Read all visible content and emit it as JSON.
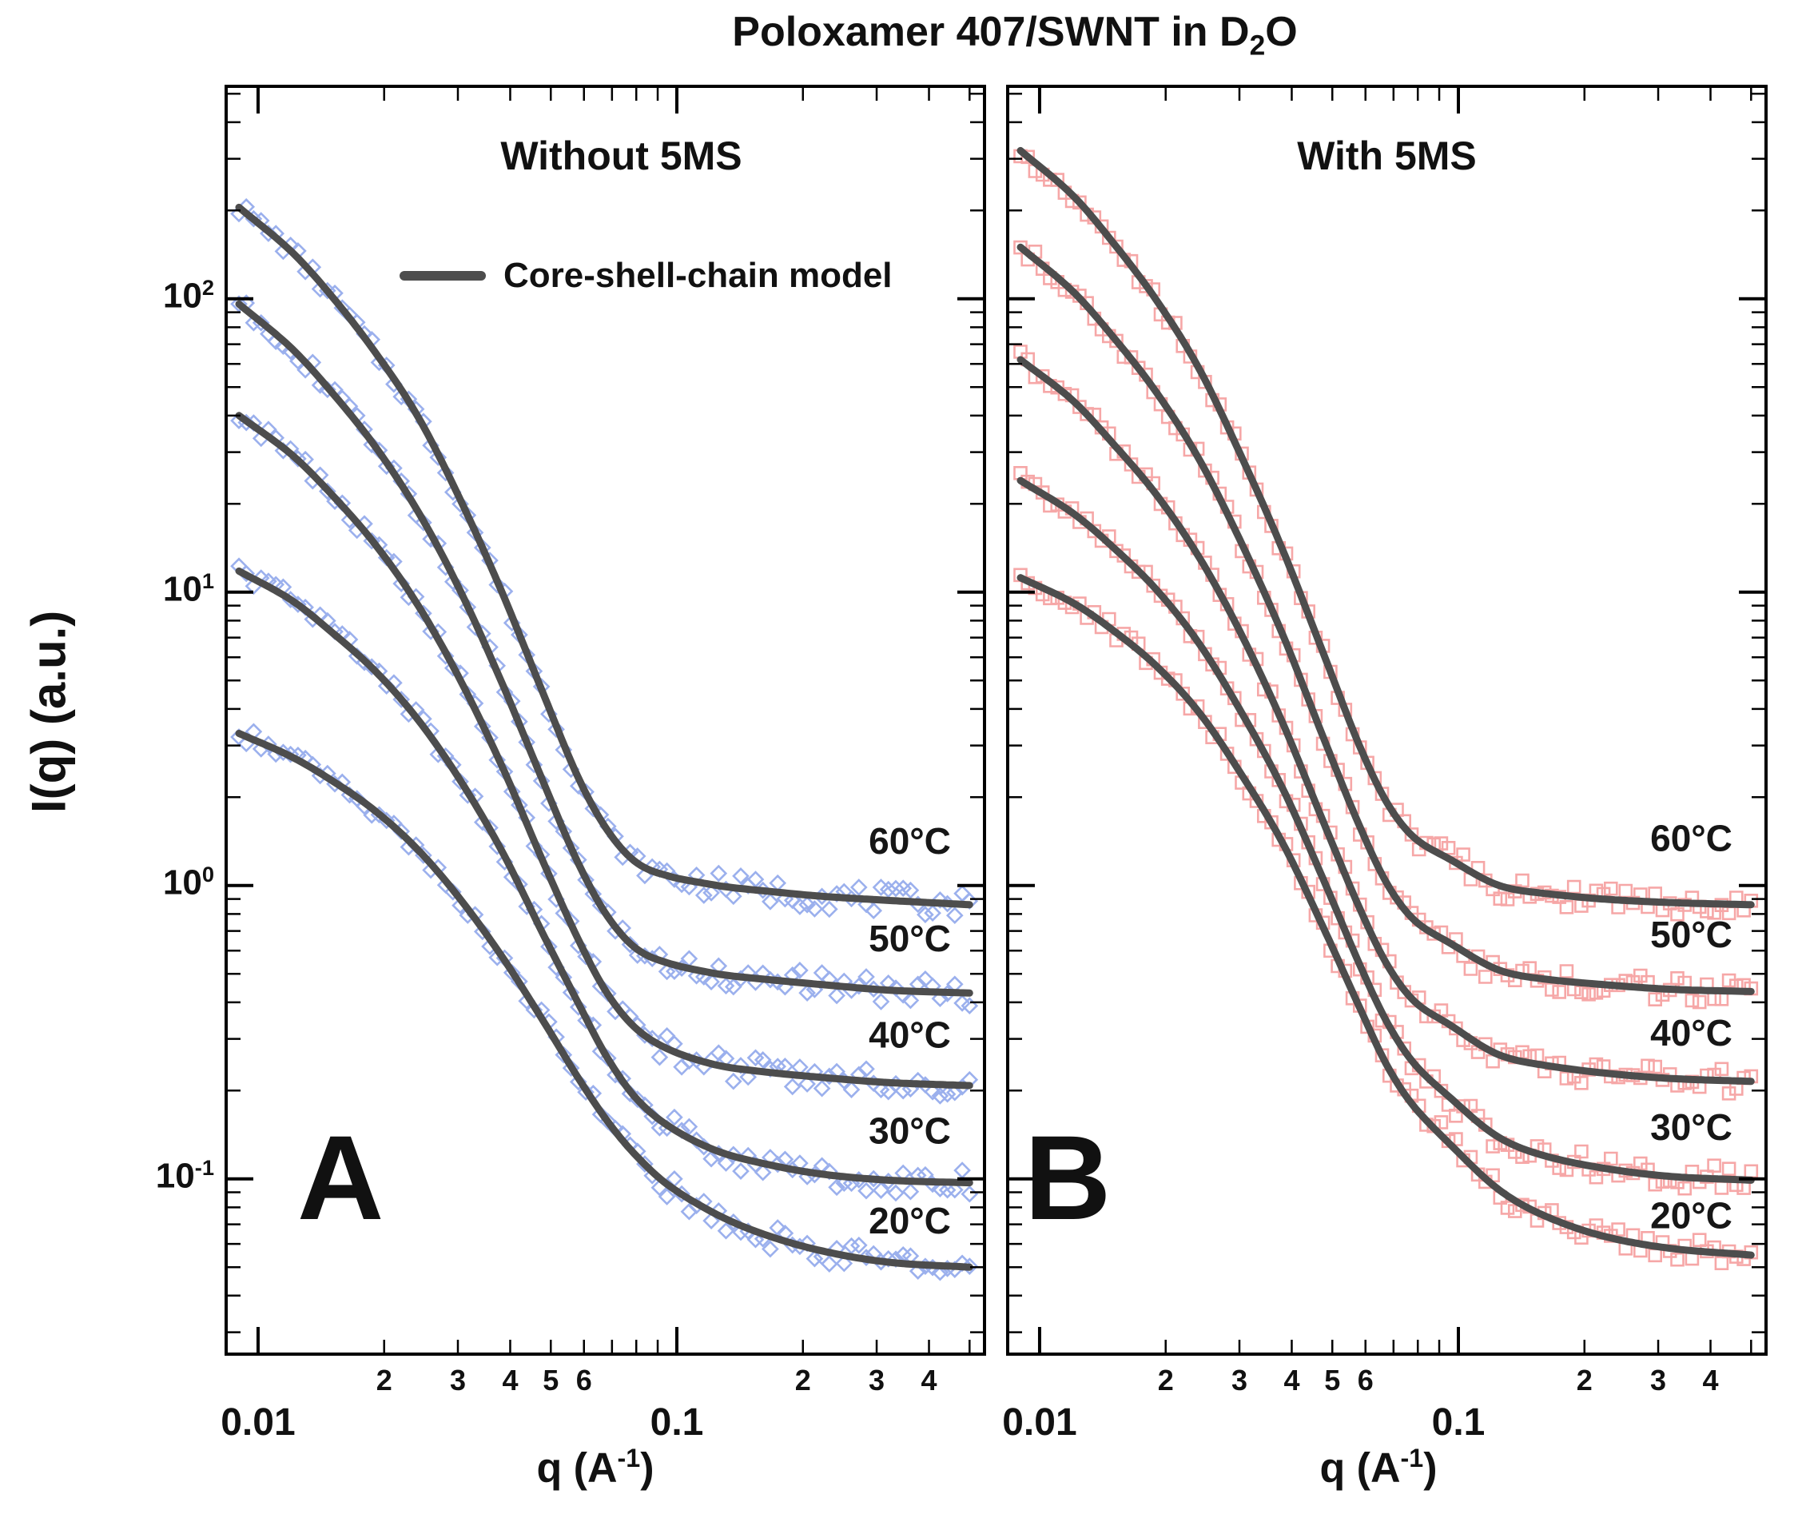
{
  "title": {
    "pre": "Poloxamer 407/SWNT in D",
    "sub": "2",
    "post": "O"
  },
  "axes": {
    "ylabel": "I(q) (a.u.)",
    "xlabel_pre": "q (A",
    "xlabel_sup": "-1",
    "xlabel_post": ")"
  },
  "chart_data": {
    "type": "scatter",
    "scale": "log-log",
    "title": "Poloxamer 407/SWNT in D2O",
    "xlabel": "q (A^-1)",
    "ylabel": "I(q) (a.u.)",
    "xlim": [
      0.00828,
      0.55
    ],
    "ylim": [
      0.0248,
      540
    ],
    "legend": "Core-shell-chain model",
    "model_color": "#4d4d4d",
    "label_q": 0.36,
    "grid": false,
    "x_major_ticks": [
      {
        "q": 0.01,
        "label": "0.01"
      },
      {
        "q": 0.1,
        "label": "0.1"
      }
    ],
    "x_minor_labeled": [
      {
        "q": 0.02,
        "label": "2"
      },
      {
        "q": 0.03,
        "label": "3"
      },
      {
        "q": 0.04,
        "label": "4"
      },
      {
        "q": 0.05,
        "label": "5"
      },
      {
        "q": 0.06,
        "label": "6"
      },
      {
        "q": 0.2,
        "label": "2"
      },
      {
        "q": 0.3,
        "label": "3"
      },
      {
        "q": 0.4,
        "label": "4"
      }
    ],
    "y_major_ticks": [
      {
        "v": 100,
        "exp": "2"
      },
      {
        "v": 10,
        "exp": "1"
      },
      {
        "v": 1,
        "exp": "0"
      },
      {
        "v": 0.1,
        "exp": "-1"
      }
    ],
    "panels": [
      {
        "letter": "A",
        "subtitle": "Without 5MS",
        "marker": "diamond",
        "marker_color": "#8aa2ea",
        "bump": {
          "q": 0.095,
          "amp": 0.012,
          "w": 0.1
        },
        "series": [
          {
            "label": "60°C",
            "label_I": 1.42,
            "points": [
              [
                0.009,
                205
              ],
              [
                0.012,
                145
              ],
              [
                0.015,
                102
              ],
              [
                0.019,
                66
              ],
              [
                0.024,
                40
              ],
              [
                0.03,
                21.5
              ],
              [
                0.038,
                10.2
              ],
              [
                0.048,
                4.5
              ],
              [
                0.058,
                2.35
              ],
              [
                0.068,
                1.55
              ],
              [
                0.08,
                1.18
              ],
              [
                0.095,
                1.05
              ],
              [
                0.12,
                1.0
              ],
              [
                0.16,
                0.96
              ],
              [
                0.22,
                0.92
              ],
              [
                0.32,
                0.89
              ],
              [
                0.5,
                0.86
              ]
            ]
          },
          {
            "label": "50°C",
            "label_I": 0.66,
            "points": [
              [
                0.009,
                96
              ],
              [
                0.012,
                68
              ],
              [
                0.015,
                48
              ],
              [
                0.019,
                31.5
              ],
              [
                0.024,
                19
              ],
              [
                0.03,
                10.5
              ],
              [
                0.038,
                5.0
              ],
              [
                0.048,
                2.25
              ],
              [
                0.058,
                1.2
              ],
              [
                0.068,
                0.79
              ],
              [
                0.08,
                0.6
              ],
              [
                0.095,
                0.53
              ],
              [
                0.12,
                0.5
              ],
              [
                0.16,
                0.48
              ],
              [
                0.22,
                0.46
              ],
              [
                0.32,
                0.44
              ],
              [
                0.5,
                0.43
              ]
            ]
          },
          {
            "label": "40°C",
            "label_I": 0.31,
            "points": [
              [
                0.009,
                40
              ],
              [
                0.012,
                29.5
              ],
              [
                0.015,
                21.5
              ],
              [
                0.019,
                14.6
              ],
              [
                0.024,
                9.1
              ],
              [
                0.03,
                5.2
              ],
              [
                0.038,
                2.6
              ],
              [
                0.048,
                1.2
              ],
              [
                0.058,
                0.66
              ],
              [
                0.068,
                0.43
              ],
              [
                0.08,
                0.32
              ],
              [
                0.095,
                0.27
              ],
              [
                0.12,
                0.245
              ],
              [
                0.16,
                0.232
              ],
              [
                0.22,
                0.222
              ],
              [
                0.32,
                0.213
              ],
              [
                0.5,
                0.208
              ]
            ]
          },
          {
            "label": "30°C",
            "label_I": 0.146,
            "points": [
              [
                0.009,
                11.8
              ],
              [
                0.012,
                9.4
              ],
              [
                0.015,
                7.3
              ],
              [
                0.019,
                5.4
              ],
              [
                0.024,
                3.7
              ],
              [
                0.03,
                2.35
              ],
              [
                0.038,
                1.33
              ],
              [
                0.048,
                0.68
              ],
              [
                0.058,
                0.4
              ],
              [
                0.068,
                0.26
              ],
              [
                0.08,
                0.185
              ],
              [
                0.095,
                0.148
              ],
              [
                0.12,
                0.126
              ],
              [
                0.16,
                0.113
              ],
              [
                0.22,
                0.104
              ],
              [
                0.32,
                0.099
              ],
              [
                0.5,
                0.097
              ]
            ]
          },
          {
            "label": "20°C",
            "label_I": 0.072,
            "points": [
              [
                0.009,
                3.3
              ],
              [
                0.012,
                2.75
              ],
              [
                0.015,
                2.28
              ],
              [
                0.019,
                1.8
              ],
              [
                0.024,
                1.33
              ],
              [
                0.03,
                0.92
              ],
              [
                0.038,
                0.58
              ],
              [
                0.048,
                0.345
              ],
              [
                0.058,
                0.222
              ],
              [
                0.068,
                0.158
              ],
              [
                0.08,
                0.118
              ],
              [
                0.095,
                0.093
              ],
              [
                0.12,
                0.077
              ],
              [
                0.16,
                0.065
              ],
              [
                0.22,
                0.057
              ],
              [
                0.32,
                0.052
              ],
              [
                0.5,
                0.05
              ]
            ]
          }
        ]
      },
      {
        "letter": "B",
        "subtitle": "With 5MS",
        "marker": "square",
        "marker_color": "#f49898",
        "bump": {
          "q": 0.093,
          "amp": 0.05,
          "w": 0.1
        },
        "series": [
          {
            "label": "60°C",
            "label_I": 1.45,
            "points": [
              [
                0.009,
                320
              ],
              [
                0.012,
                225
              ],
              [
                0.015,
                155
              ],
              [
                0.019,
                99
              ],
              [
                0.024,
                58
              ],
              [
                0.03,
                30
              ],
              [
                0.038,
                14
              ],
              [
                0.048,
                6.0
              ],
              [
                0.058,
                3.0
              ],
              [
                0.068,
                1.85
              ],
              [
                0.08,
                1.32
              ],
              [
                0.095,
                1.1
              ],
              [
                0.12,
                0.99
              ],
              [
                0.16,
                0.94
              ],
              [
                0.22,
                0.9
              ],
              [
                0.32,
                0.875
              ],
              [
                0.5,
                0.86
              ]
            ]
          },
          {
            "label": "50°C",
            "label_I": 0.68,
            "points": [
              [
                0.009,
                150
              ],
              [
                0.012,
                106
              ],
              [
                0.015,
                74
              ],
              [
                0.019,
                48
              ],
              [
                0.024,
                28.5
              ],
              [
                0.03,
                15.2
              ],
              [
                0.038,
                7.2
              ],
              [
                0.048,
                3.1
              ],
              [
                0.058,
                1.6
              ],
              [
                0.068,
                0.98
              ],
              [
                0.08,
                0.69
              ],
              [
                0.095,
                0.57
              ],
              [
                0.12,
                0.51
              ],
              [
                0.16,
                0.48
              ],
              [
                0.22,
                0.46
              ],
              [
                0.32,
                0.443
              ],
              [
                0.5,
                0.435
              ]
            ]
          },
          {
            "label": "40°C",
            "label_I": 0.315,
            "points": [
              [
                0.009,
                62
              ],
              [
                0.012,
                45
              ],
              [
                0.015,
                32
              ],
              [
                0.019,
                21.5
              ],
              [
                0.024,
                13.2
              ],
              [
                0.03,
                7.4
              ],
              [
                0.038,
                3.6
              ],
              [
                0.048,
                1.6
              ],
              [
                0.058,
                0.84
              ],
              [
                0.068,
                0.52
              ],
              [
                0.08,
                0.365
              ],
              [
                0.095,
                0.3
              ],
              [
                0.12,
                0.263
              ],
              [
                0.16,
                0.244
              ],
              [
                0.22,
                0.23
              ],
              [
                0.32,
                0.22
              ],
              [
                0.5,
                0.215
              ]
            ]
          },
          {
            "label": "30°C",
            "label_I": 0.15,
            "points": [
              [
                0.009,
                24
              ],
              [
                0.012,
                18.6
              ],
              [
                0.015,
                14.2
              ],
              [
                0.019,
                10.2
              ],
              [
                0.024,
                6.7
              ],
              [
                0.03,
                4.0
              ],
              [
                0.038,
                2.15
              ],
              [
                0.048,
                1.02
              ],
              [
                0.058,
                0.54
              ],
              [
                0.068,
                0.33
              ],
              [
                0.08,
                0.222
              ],
              [
                0.095,
                0.17
              ],
              [
                0.12,
                0.139
              ],
              [
                0.16,
                0.12
              ],
              [
                0.22,
                0.109
              ],
              [
                0.32,
                0.102
              ],
              [
                0.5,
                0.099
              ]
            ]
          },
          {
            "label": "20°C",
            "label_I": 0.075,
            "points": [
              [
                0.009,
                11.2
              ],
              [
                0.012,
                9.2
              ],
              [
                0.015,
                7.4
              ],
              [
                0.019,
                5.6
              ],
              [
                0.024,
                3.9
              ],
              [
                0.03,
                2.45
              ],
              [
                0.038,
                1.4
              ],
              [
                0.048,
                0.7
              ],
              [
                0.058,
                0.385
              ],
              [
                0.068,
                0.235
              ],
              [
                0.08,
                0.158
              ],
              [
                0.095,
                0.118
              ],
              [
                0.12,
                0.093
              ],
              [
                0.16,
                0.075
              ],
              [
                0.22,
                0.064
              ],
              [
                0.32,
                0.058
              ],
              [
                0.5,
                0.055
              ]
            ]
          }
        ]
      }
    ]
  }
}
